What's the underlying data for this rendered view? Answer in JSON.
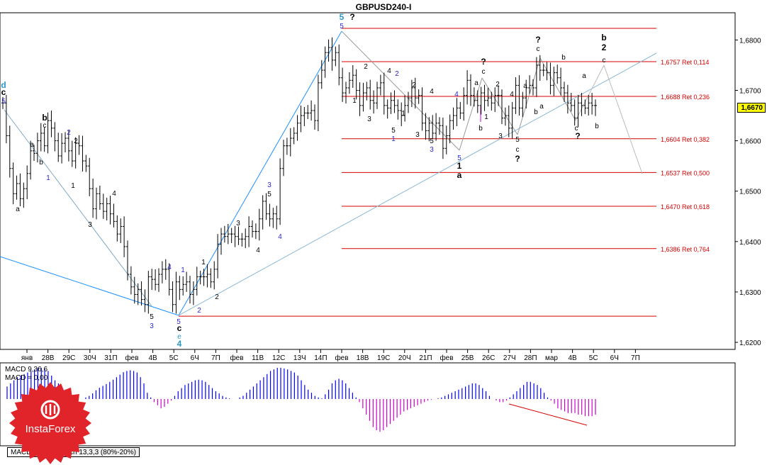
{
  "window": {
    "title": "GBPUSD240-I"
  },
  "colors": {
    "wave_blue": "#1e90ff",
    "wave_cyan": "#2c97c7",
    "fib_red": "#d40000",
    "macd_blue": "#0000ff",
    "macd_magenta": "#cc00cc",
    "current_price_bg": "#ffff00",
    "logo_red": "#e0242a"
  },
  "current_price": "1,6670",
  "tabs": [
    {
      "label": "MACD 9,36,6",
      "selected": true
    },
    {
      "label": "Stoch 13,3,3 (80%-20%)",
      "selected": false
    }
  ],
  "macd": {
    "label": "MACD 9,36,6",
    "value_label": "MACD = 0,00"
  },
  "logo": {
    "text": "InstaForex"
  },
  "chart_data": {
    "type": "candlestick",
    "title": "GBPUSD240-I",
    "y_ticks": [
      "1,6800",
      "1,6700",
      "1,6600",
      "1,6500",
      "1,6400",
      "1,6300",
      "1,6200"
    ],
    "y_tick_values": [
      1.68,
      1.67,
      1.66,
      1.65,
      1.64,
      1.63,
      1.62
    ],
    "ylim": [
      1.6186,
      1.6854
    ],
    "x_ticks": [
      "янв",
      "28В",
      "29С",
      "30Ч",
      "31П",
      "фев",
      "4В",
      "5С",
      "6Ч",
      "7П",
      "фев",
      "11В",
      "12С",
      "13Ч",
      "14П",
      "фев",
      "18В",
      "19С",
      "20Ч",
      "21П",
      "фев",
      "25В",
      "26С",
      "27Ч",
      "28П",
      "мар",
      "4В",
      "5С",
      "6Ч",
      "7П"
    ],
    "fib_levels": [
      {
        "price": 1.6823,
        "label": ""
      },
      {
        "price": 1.6757,
        "label": "1,6757 Ret 0,114"
      },
      {
        "price": 1.6688,
        "label": "1,6688 Ret 0,236"
      },
      {
        "price": 1.6604,
        "label": "1,6604 Ret 0,382"
      },
      {
        "price": 1.6537,
        "label": "1,6537 Ret 0,500"
      },
      {
        "price": 1.647,
        "label": "1,6470 Ret 0,618"
      },
      {
        "price": 1.6386,
        "label": "1,6386 Ret 0,764"
      },
      {
        "price": 1.6252,
        "label": ""
      }
    ],
    "close_series": [
      1.6675,
      1.661,
      1.6545,
      1.6495,
      1.6515,
      1.6485,
      1.6505,
      1.6535,
      1.658,
      1.6575,
      1.66,
      1.6615,
      1.659,
      1.664,
      1.6625,
      1.66,
      1.657,
      1.6595,
      1.6605,
      1.658,
      1.656,
      1.6595,
      1.659,
      1.656,
      1.655,
      1.6505,
      1.6465,
      1.6495,
      1.6475,
      1.646,
      1.6475,
      1.6455,
      1.644,
      1.6415,
      1.643,
      1.639,
      1.6335,
      1.631,
      1.6295,
      1.6305,
      1.6285,
      1.6275,
      1.633,
      1.6325,
      1.6315,
      1.6335,
      1.6345,
      1.6345,
      1.6305,
      1.6275,
      1.632,
      1.6305,
      1.6315,
      1.632,
      1.6295,
      1.6305,
      1.633,
      1.633,
      1.633,
      1.6335,
      1.632,
      1.6345,
      1.6395,
      1.6415,
      1.641,
      1.6415,
      1.6415,
      1.641,
      1.6405,
      1.6405,
      1.641,
      1.643,
      1.642,
      1.642,
      1.6445,
      1.648,
      1.6455,
      1.6445,
      1.6455,
      1.6445,
      1.6545,
      1.659,
      1.659,
      1.6605,
      1.6615,
      1.6635,
      1.665,
      1.6655,
      1.6655,
      1.666,
      1.664,
      1.6715,
      1.674,
      1.6775,
      1.6785,
      1.676,
      1.6775,
      1.6725,
      1.6695,
      1.6705,
      1.672,
      1.673,
      1.67,
      1.667,
      1.6695,
      1.6705,
      1.668,
      1.6675,
      1.6705,
      1.6715,
      1.667,
      1.6665,
      1.668,
      1.667,
      1.666,
      1.665,
      1.667,
      1.6685,
      1.6705,
      1.6685,
      1.669,
      1.6635,
      1.662,
      1.6635,
      1.6615,
      1.6635,
      1.663,
      1.6585,
      1.661,
      1.664,
      1.665,
      1.6665,
      1.6655,
      1.669,
      1.672,
      1.669,
      1.668,
      1.667,
      1.6695,
      1.668,
      1.6685,
      1.6675,
      1.669,
      1.669,
      1.6645,
      1.665,
      1.6625,
      1.6665,
      1.671,
      1.6665,
      1.6685,
      1.6705,
      1.671,
      1.6705,
      1.675,
      1.674,
      1.674,
      1.6735,
      1.671,
      1.6735,
      1.6725,
      1.6705,
      1.6695,
      1.6675,
      1.667,
      1.6645,
      1.6675,
      1.667,
      1.6665,
      1.6675,
      1.667,
      1.667
    ],
    "wave_labels": [
      {
        "text": "d",
        "color": "cyan"
      },
      {
        "text": "c",
        "color": "black"
      },
      {
        "text": "5",
        "color": "blue"
      },
      {
        "text": "b",
        "color": "black"
      },
      {
        "text": "c",
        "color": "black"
      },
      {
        "text": "a",
        "color": "black"
      },
      {
        "text": "b",
        "color": "black"
      },
      {
        "text": "1",
        "color": "blue"
      },
      {
        "text": "a",
        "color": "black"
      },
      {
        "text": "2",
        "color": "blue"
      },
      {
        "text": "2",
        "color": "black"
      },
      {
        "text": "1",
        "color": "black"
      },
      {
        "text": "4",
        "color": "black"
      },
      {
        "text": "3",
        "color": "black"
      },
      {
        "text": "5",
        "color": "black"
      },
      {
        "text": "3",
        "color": "blue"
      },
      {
        "text": "4",
        "color": "blue"
      },
      {
        "text": "1",
        "color": "blue"
      },
      {
        "text": "2",
        "color": "blue"
      },
      {
        "text": "5",
        "color": "blue"
      },
      {
        "text": "c",
        "color": "black"
      },
      {
        "text": "e",
        "color": "cyan"
      },
      {
        "text": "4",
        "color": "cyan"
      },
      {
        "text": "1",
        "color": "black"
      },
      {
        "text": "2",
        "color": "black"
      },
      {
        "text": "3",
        "color": "black"
      },
      {
        "text": "4",
        "color": "black"
      },
      {
        "text": "3",
        "color": "blue"
      },
      {
        "text": "5",
        "color": "black"
      },
      {
        "text": "4",
        "color": "blue"
      },
      {
        "text": "5",
        "color": "cyan"
      },
      {
        "text": "?",
        "color": "black"
      },
      {
        "text": "5",
        "color": "blue"
      },
      {
        "text": "2",
        "color": "black"
      },
      {
        "text": "1",
        "color": "black"
      },
      {
        "text": "4",
        "color": "black"
      },
      {
        "text": "2",
        "color": "blue"
      },
      {
        "text": "3",
        "color": "black"
      },
      {
        "text": "1",
        "color": "black"
      },
      {
        "text": "2",
        "color": "black"
      },
      {
        "text": "4",
        "color": "black"
      },
      {
        "text": "5",
        "color": "black"
      },
      {
        "text": "1",
        "color": "blue"
      },
      {
        "text": "3",
        "color": "black"
      },
      {
        "text": "5",
        "color": "black"
      },
      {
        "text": "3",
        "color": "blue"
      },
      {
        "text": "4",
        "color": "blue"
      },
      {
        "text": "5",
        "color": "blue"
      },
      {
        "text": "1",
        "color": "black"
      },
      {
        "text": "a",
        "color": "black"
      },
      {
        "text": "?",
        "color": "black"
      },
      {
        "text": "c",
        "color": "black"
      },
      {
        "text": "a",
        "color": "black"
      },
      {
        "text": "b",
        "color": "black"
      },
      {
        "text": "1",
        "color": "black"
      },
      {
        "text": "2",
        "color": "black"
      },
      {
        "text": "3",
        "color": "black"
      },
      {
        "text": "4",
        "color": "black"
      },
      {
        "text": "5",
        "color": "black"
      },
      {
        "text": "c",
        "color": "black"
      },
      {
        "text": "?",
        "color": "black"
      },
      {
        "text": "a",
        "color": "black"
      },
      {
        "text": "?",
        "color": "black"
      },
      {
        "text": "c",
        "color": "black"
      },
      {
        "text": "b",
        "color": "black"
      },
      {
        "text": "a",
        "color": "black"
      },
      {
        "text": "b",
        "color": "black"
      },
      {
        "text": "a",
        "color": "black"
      },
      {
        "text": "c",
        "color": "black"
      },
      {
        "text": "?",
        "color": "black"
      },
      {
        "text": "b",
        "color": "black"
      },
      {
        "text": "b",
        "color": "black"
      },
      {
        "text": "2",
        "color": "black"
      },
      {
        "text": "c",
        "color": "black"
      }
    ],
    "macd_values": [
      0.4,
      0.5,
      0.6,
      0.7,
      0.75,
      0.8,
      0.85,
      0.9,
      0.95,
      1,
      1,
      0.98,
      0.9,
      0.75,
      0.6,
      0.5,
      0.4,
      0.3,
      0.2,
      0.1,
      0.05,
      0,
      0,
      0.05,
      0.1,
      0.18,
      0.28,
      0.36,
      0.42,
      0.48,
      0.55,
      0.62,
      0.7,
      0.78,
      0.86,
      0.9,
      0.92,
      0.9,
      0.85,
      0.7,
      0.5,
      0.2,
      0.05,
      -0.1,
      -0.2,
      -0.3,
      -0.25,
      -0.15,
      -0.05,
      0.1,
      0.25,
      0.35,
      0.45,
      0.5,
      0.55,
      0.6,
      0.62,
      0.6,
      0.55,
      0.45,
      0.35,
      0.25,
      0.18,
      0.1,
      0.05,
      0.02,
      0,
      0,
      0.05,
      0.1,
      0.2,
      0.3,
      0.4,
      0.5,
      0.6,
      0.7,
      0.8,
      0.9,
      0.95,
      1,
      1,
      0.98,
      0.95,
      0.9,
      0.85,
      0.75,
      0.6,
      0.45,
      0.3,
      0.2,
      0.1,
      0.05,
      0.02,
      0.15,
      0.3,
      0.5,
      0.6,
      0.65,
      0.6,
      0.5,
      0.35,
      0.2,
      0.05,
      -0.1,
      -0.3,
      -0.5,
      -0.7,
      -0.9,
      -1,
      -1.05,
      -1,
      -0.9,
      -0.8,
      -0.7,
      -0.6,
      -0.5,
      -0.4,
      -0.35,
      -0.3,
      -0.25,
      -0.2,
      -0.15,
      -0.1,
      -0.05,
      -0.02,
      0,
      0.02,
      0.05,
      0.1,
      0.15,
      0.2,
      0.25,
      0.3,
      0.35,
      0.4,
      0.45,
      0.5,
      0.5,
      0.45,
      0.35,
      0.25,
      0.1,
      0,
      -0.05,
      -0.1,
      -0.1,
      -0.05,
      0.05,
      0.15,
      0.25,
      0.35,
      0.45,
      0.55,
      0.55,
      0.5,
      0.45,
      0.35,
      0.2,
      0.05,
      -0.05,
      -0.15,
      -0.3,
      -0.35,
      -0.4,
      -0.45,
      -0.45,
      -0.45,
      -0.5,
      -0.5,
      -0.55,
      -0.55,
      -0.55,
      -0.5
    ]
  }
}
